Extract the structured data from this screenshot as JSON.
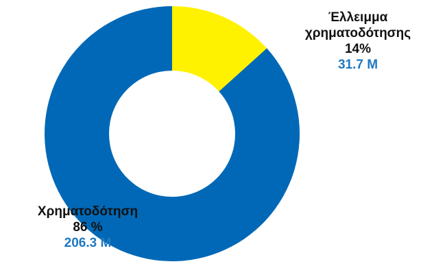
{
  "chart_data": {
    "type": "pie",
    "donut": true,
    "slices": [
      {
        "name_lines": [
          "Έλλειμμα",
          "χρηματοδότησης"
        ],
        "percent_label": "14%",
        "amount_label": "31.7 M",
        "value": 31.7,
        "color": "#FFF200"
      },
      {
        "name_lines": [
          "Χρηματοδότηση"
        ],
        "percent_label": "86 %",
        "amount_label": "206.3 M",
        "value": 206.3,
        "color": "#0068B6"
      }
    ],
    "amount_color": "#1F78C1"
  }
}
